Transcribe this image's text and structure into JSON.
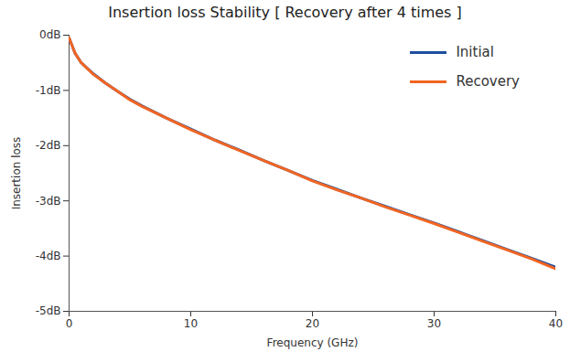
{
  "chart_data": {
    "type": "line",
    "title": "Insertion loss Stability [ Recovery after 4 times ]",
    "x_label": "Frequency (GHz)",
    "y_label": "Insertion loss",
    "x": [
      0,
      0.5,
      1,
      2,
      3,
      4,
      5,
      6,
      8,
      10,
      12,
      14,
      16,
      18,
      20,
      22,
      24,
      26,
      28,
      30,
      32,
      34,
      36,
      38,
      40
    ],
    "series": [
      {
        "name": "Initial",
        "color": "#1f4e9c",
        "values": [
          -0.05,
          -0.33,
          -0.5,
          -0.7,
          -0.87,
          -1.02,
          -1.16,
          -1.28,
          -1.5,
          -1.7,
          -1.9,
          -2.08,
          -2.27,
          -2.45,
          -2.63,
          -2.79,
          -2.95,
          -3.1,
          -3.25,
          -3.4,
          -3.56,
          -3.72,
          -3.88,
          -4.04,
          -4.2
        ]
      },
      {
        "name": "Recovery",
        "color": "#f26522",
        "values": [
          -0.05,
          -0.33,
          -0.5,
          -0.71,
          -0.87,
          -1.02,
          -1.17,
          -1.29,
          -1.5,
          -1.71,
          -1.9,
          -2.09,
          -2.27,
          -2.45,
          -2.64,
          -2.8,
          -2.95,
          -3.11,
          -3.26,
          -3.41,
          -3.57,
          -3.73,
          -3.89,
          -4.05,
          -4.23
        ]
      }
    ],
    "xlim": [
      0,
      40
    ],
    "xticks": [
      0,
      10,
      20,
      30,
      40
    ],
    "ylim": [
      -5,
      0
    ],
    "yticks": [
      {
        "value": 0,
        "label": "0dB"
      },
      {
        "value": -1,
        "label": "-1dB"
      },
      {
        "value": -2,
        "label": "-2dB"
      },
      {
        "value": -3,
        "label": "-3dB"
      },
      {
        "value": -4,
        "label": "-4dB"
      },
      {
        "value": -5,
        "label": "-5dB"
      }
    ],
    "grid": false,
    "legend": "top-right"
  }
}
